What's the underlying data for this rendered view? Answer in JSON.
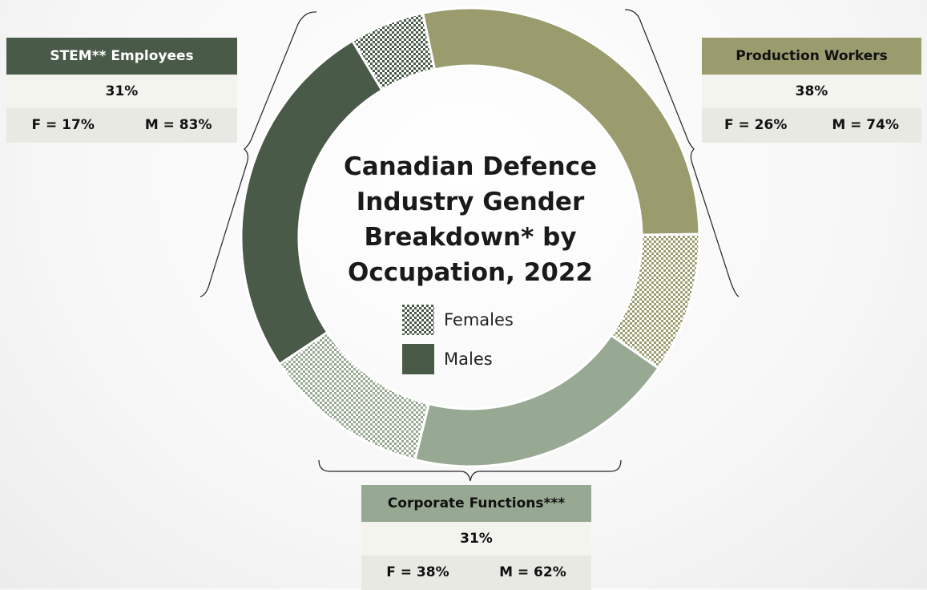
{
  "chart_data": {
    "type": "donut",
    "title": "Canadian Defence Industry Gender Breakdown* by Occupation, 2022",
    "categories": [
      "Production Workers",
      "Corporate Functions***",
      "STEM** Employees"
    ],
    "values": [
      38,
      31,
      31
    ],
    "value_labels": [
      "38%",
      "31%",
      "31%"
    ],
    "colors": [
      "#9a9c6e",
      "#97a993",
      "#4a5a48"
    ],
    "series": [
      {
        "name": "Females",
        "values": [
          26,
          38,
          17
        ],
        "value_labels": [
          "F = 26%",
          "F = 38%",
          "F = 17%"
        ]
      },
      {
        "name": "Males",
        "values": [
          74,
          62,
          83
        ],
        "value_labels": [
          "M = 74%",
          "M = 62%",
          "M = 83%"
        ]
      }
    ]
  }
}
